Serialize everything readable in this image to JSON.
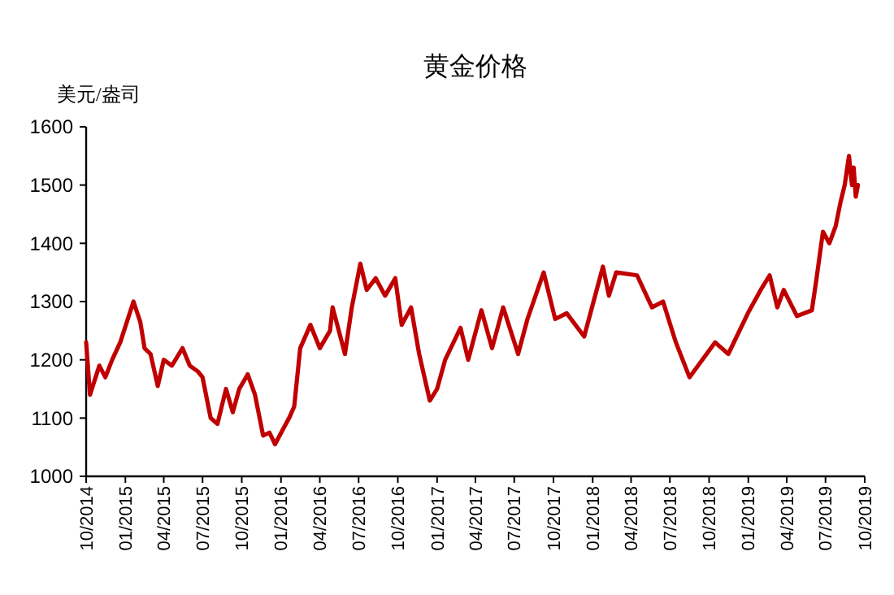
{
  "chart_data": {
    "type": "line",
    "title": "黄金价格",
    "ylabel": "美元/盎司",
    "xlim": [
      "2014-10-01",
      "2019-10-01"
    ],
    "xticks": [
      {
        "value": "2014-10-01",
        "label": "10/2014"
      },
      {
        "value": "2015-01-01",
        "label": "01/2015"
      },
      {
        "value": "2015-04-01",
        "label": "04/2015"
      },
      {
        "value": "2015-07-01",
        "label": "07/2015"
      },
      {
        "value": "2015-10-01",
        "label": "10/2015"
      },
      {
        "value": "2016-01-01",
        "label": "01/2016"
      },
      {
        "value": "2016-04-01",
        "label": "04/2016"
      },
      {
        "value": "2016-07-01",
        "label": "07/2016"
      },
      {
        "value": "2016-10-01",
        "label": "10/2016"
      },
      {
        "value": "2017-01-01",
        "label": "01/2017"
      },
      {
        "value": "2017-04-01",
        "label": "04/2017"
      },
      {
        "value": "2017-07-01",
        "label": "07/2017"
      },
      {
        "value": "2017-10-01",
        "label": "10/2017"
      },
      {
        "value": "2018-01-01",
        "label": "01/2018"
      },
      {
        "value": "2018-04-01",
        "label": "04/2018"
      },
      {
        "value": "2018-07-01",
        "label": "07/2018"
      },
      {
        "value": "2018-10-01",
        "label": "10/2018"
      },
      {
        "value": "2019-01-01",
        "label": "01/2019"
      },
      {
        "value": "2019-04-01",
        "label": "04/2019"
      },
      {
        "value": "2019-07-01",
        "label": "07/2019"
      },
      {
        "value": "2019-10-01",
        "label": "10/2019"
      }
    ],
    "ylim": [
      1000,
      1600
    ],
    "yticks": [
      1000,
      1100,
      1200,
      1300,
      1400,
      1500,
      1600
    ],
    "grid": false,
    "marker": "none",
    "line_style": "solid",
    "x": [
      "2014-10-01",
      "2014-10-10",
      "2014-11-01",
      "2014-11-15",
      "2014-12-01",
      "2014-12-20",
      "2015-01-20",
      "2015-02-05",
      "2015-02-15",
      "2015-03-01",
      "2015-03-18",
      "2015-04-01",
      "2015-04-20",
      "2015-05-15",
      "2015-06-01",
      "2015-06-20",
      "2015-07-01",
      "2015-07-20",
      "2015-08-05",
      "2015-08-25",
      "2015-09-10",
      "2015-09-25",
      "2015-10-15",
      "2015-11-01",
      "2015-11-20",
      "2015-12-05",
      "2015-12-18",
      "2016-01-05",
      "2016-01-20",
      "2016-02-01",
      "2016-02-15",
      "2016-03-10",
      "2016-04-01",
      "2016-04-25",
      "2016-05-01",
      "2016-05-30",
      "2016-06-15",
      "2016-07-05",
      "2016-07-20",
      "2016-08-10",
      "2016-09-01",
      "2016-09-25",
      "2016-10-10",
      "2016-11-01",
      "2016-11-20",
      "2016-12-15",
      "2017-01-01",
      "2017-01-20",
      "2017-02-25",
      "2017-03-15",
      "2017-04-15",
      "2017-05-10",
      "2017-06-05",
      "2017-07-10",
      "2017-08-01",
      "2017-09-08",
      "2017-10-05",
      "2017-11-01",
      "2017-12-12",
      "2018-01-25",
      "2018-02-08",
      "2018-02-25",
      "2018-04-15",
      "2018-05-20",
      "2018-06-15",
      "2018-07-15",
      "2018-08-16",
      "2018-09-15",
      "2018-10-15",
      "2018-11-15",
      "2018-12-31",
      "2019-01-30",
      "2019-02-20",
      "2019-03-10",
      "2019-03-25",
      "2019-04-25",
      "2019-05-30",
      "2019-06-10",
      "2019-06-25",
      "2019-07-10",
      "2019-07-25",
      "2019-08-05",
      "2019-08-15",
      "2019-08-25",
      "2019-09-01",
      "2019-09-05",
      "2019-09-10",
      "2019-09-15"
    ],
    "series": [
      {
        "color": "#c00000",
        "values": [
          1230,
          1140,
          1190,
          1170,
          1200,
          1230,
          1300,
          1265,
          1220,
          1210,
          1155,
          1200,
          1190,
          1220,
          1190,
          1180,
          1170,
          1100,
          1090,
          1150,
          1110,
          1150,
          1175,
          1140,
          1070,
          1075,
          1055,
          1080,
          1100,
          1120,
          1220,
          1260,
          1220,
          1250,
          1290,
          1210,
          1290,
          1365,
          1320,
          1340,
          1310,
          1340,
          1260,
          1290,
          1210,
          1130,
          1150,
          1200,
          1255,
          1200,
          1285,
          1220,
          1290,
          1210,
          1270,
          1350,
          1270,
          1280,
          1240,
          1360,
          1310,
          1350,
          1345,
          1290,
          1300,
          1230,
          1170,
          1200,
          1230,
          1210,
          1280,
          1320,
          1345,
          1290,
          1320,
          1275,
          1285,
          1340,
          1420,
          1400,
          1430,
          1470,
          1500,
          1550,
          1500,
          1530,
          1480,
          1500
        ]
      }
    ]
  }
}
